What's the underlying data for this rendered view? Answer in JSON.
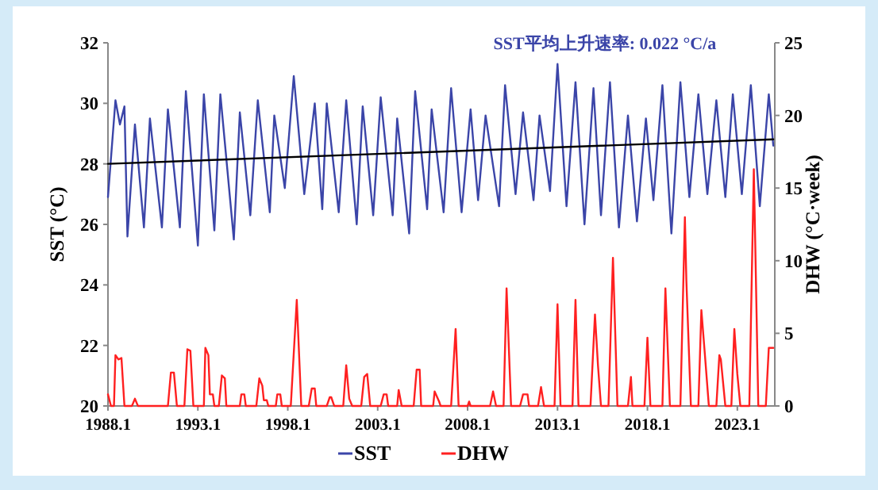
{
  "chart_data": {
    "type": "line",
    "ylabel": "SST (°C)",
    "y2label": "DHW (°C·week)",
    "annotations": [
      "SST平均上升速率: 0.022 °C/a"
    ],
    "legend": "bottom",
    "grid": false,
    "marker": "none",
    "line_style": "solid",
    "xlim": [
      "1988-01",
      "2025-02"
    ],
    "xticks": [
      {
        "value": "1988-01",
        "label": "1988.1"
      },
      {
        "value": "1993-01",
        "label": "1993.1"
      },
      {
        "value": "1998-01",
        "label": "1998.1"
      },
      {
        "value": "2003-01",
        "label": "2003.1"
      },
      {
        "value": "2008-01",
        "label": "2008.1"
      },
      {
        "value": "2013-01",
        "label": "2013.1"
      },
      {
        "value": "2018-01",
        "label": "2018.1"
      },
      {
        "value": "2023-01",
        "label": "2023.1"
      }
    ],
    "ylim": [
      20,
      32
    ],
    "yticks": [
      20,
      22,
      24,
      26,
      28,
      30,
      32
    ],
    "y2lim": [
      0,
      25
    ],
    "y2ticks": [
      0,
      5,
      10,
      15,
      20,
      25
    ],
    "series": [
      {
        "name": "SST",
        "color": "#3b45a8",
        "x": [
          "1988-01",
          "1988-06",
          "1988-09",
          "1988-12",
          "1989-02",
          "1989-07",
          "1990-01",
          "1990-05",
          "1991-01",
          "1991-05",
          "1992-01",
          "1992-05",
          "1993-01",
          "1993-05",
          "1993-12",
          "1994-04",
          "1995-01",
          "1995-05",
          "1995-12",
          "1996-05",
          "1997-01",
          "1997-04",
          "1997-11",
          "1998-05",
          "1998-12",
          "1999-07",
          "1999-12",
          "2000-03",
          "2000-11",
          "2001-04",
          "2001-11",
          "2002-03",
          "2002-10",
          "2003-03",
          "2003-11",
          "2004-02",
          "2004-10",
          "2005-02",
          "2005-10",
          "2006-01",
          "2006-09",
          "2007-02",
          "2007-09",
          "2008-03",
          "2008-08",
          "2009-01",
          "2009-10",
          "2010-02",
          "2010-09",
          "2011-02",
          "2011-09",
          "2012-01",
          "2012-08",
          "2013-01",
          "2013-07",
          "2014-01",
          "2014-07",
          "2015-01",
          "2015-06",
          "2015-12",
          "2016-06",
          "2016-12",
          "2017-06",
          "2017-12",
          "2018-05",
          "2018-11",
          "2019-05",
          "2019-11",
          "2020-05",
          "2020-11",
          "2021-05",
          "2021-11",
          "2022-05",
          "2022-10",
          "2023-04",
          "2023-10",
          "2024-04",
          "2024-10",
          "2025-01"
        ],
        "values": [
          26.9,
          30.1,
          29.3,
          29.9,
          25.6,
          29.3,
          25.9,
          29.5,
          25.9,
          29.8,
          25.9,
          30.4,
          25.3,
          30.3,
          25.8,
          30.3,
          25.5,
          29.7,
          26.3,
          30.1,
          26.4,
          29.6,
          27.2,
          30.9,
          27.0,
          30.0,
          26.5,
          30.0,
          26.4,
          30.1,
          26.0,
          29.9,
          26.3,
          30.2,
          26.3,
          29.5,
          25.7,
          30.4,
          26.5,
          29.8,
          26.4,
          30.5,
          26.4,
          29.8,
          26.8,
          29.6,
          26.6,
          30.6,
          27.0,
          29.7,
          26.8,
          29.6,
          27.1,
          31.3,
          26.6,
          30.7,
          26.0,
          30.5,
          26.3,
          30.7,
          25.9,
          29.6,
          26.1,
          29.5,
          26.8,
          30.6,
          25.7,
          30.7,
          26.9,
          30.3,
          27.0,
          30.1,
          26.9,
          30.3,
          27.0,
          30.6,
          26.6,
          30.3,
          28.6
        ]
      },
      {
        "color": "#000000",
        "x": [
          "1988-01",
          "2025-01"
        ],
        "values": [
          28.0,
          28.81
        ]
      },
      {
        "name": "DHW",
        "color": "#ff2020",
        "axis": "y2",
        "x": [
          "1988-01",
          "1988-03",
          "1988-05",
          "1988-06",
          "1988-08",
          "1988-10",
          "1988-12",
          "1989-05",
          "1989-07",
          "1989-09",
          "1991-05",
          "1991-07",
          "1991-09",
          "1991-11",
          "1992-04",
          "1992-06",
          "1992-08",
          "1992-10",
          "1993-05",
          "1993-06",
          "1993-08",
          "1993-09",
          "1993-11",
          "1993-12",
          "1994-03",
          "1994-05",
          "1994-07",
          "1994-08",
          "1995-05",
          "1995-06",
          "1995-08",
          "1995-09",
          "1996-04",
          "1996-06",
          "1996-08",
          "1996-09",
          "1996-11",
          "1996-12",
          "1997-05",
          "1997-06",
          "1997-08",
          "1997-09",
          "1998-03",
          "1998-07",
          "1998-10",
          "1999-03",
          "1999-05",
          "1999-07",
          "1999-08",
          "2000-03",
          "2000-05",
          "2000-06",
          "2000-08",
          "2001-02",
          "2001-04",
          "2001-06",
          "2001-08",
          "2002-02",
          "2002-04",
          "2002-06",
          "2002-08",
          "2003-03",
          "2003-05",
          "2003-07",
          "2003-08",
          "2004-02",
          "2004-03",
          "2004-05",
          "2005-01",
          "2005-03",
          "2005-05",
          "2005-06",
          "2006-02",
          "2006-03",
          "2006-06",
          "2006-07",
          "2007-02",
          "2007-05",
          "2007-07",
          "2008-01",
          "2008-02",
          "2008-03",
          "2009-04",
          "2009-06",
          "2009-08",
          "2010-01",
          "2010-03",
          "2010-06",
          "2010-12",
          "2011-02",
          "2011-05",
          "2011-06",
          "2011-12",
          "2012-02",
          "2012-04",
          "2012-11",
          "2013-01",
          "2013-03",
          "2013-11",
          "2014-01",
          "2014-03",
          "2014-11",
          "2015-02",
          "2015-04",
          "2015-06",
          "2015-11",
          "2016-02",
          "2016-05",
          "2016-12",
          "2017-02",
          "2017-03",
          "2017-11",
          "2018-01",
          "2018-03",
          "2018-11",
          "2019-01",
          "2019-04",
          "2019-11",
          "2020-02",
          "2020-03",
          "2020-06",
          "2020-11",
          "2021-01",
          "2021-03",
          "2021-06",
          "2021-11",
          "2022-01",
          "2022-02",
          "2022-05",
          "2022-09",
          "2022-11",
          "2023-01",
          "2023-03",
          "2023-09",
          "2023-12",
          "2024-03",
          "2024-08",
          "2024-10",
          "2025-01"
        ],
        "values": [
          0.8,
          0,
          0,
          3.5,
          3.2,
          3.3,
          0,
          0,
          0.5,
          0,
          0,
          2.3,
          2.3,
          0,
          0,
          3.9,
          3.8,
          0,
          0,
          4.0,
          3.5,
          0.8,
          0.8,
          0,
          0,
          2.1,
          1.9,
          0,
          0,
          0.8,
          0.8,
          0,
          0,
          1.9,
          1.4,
          0.4,
          0.4,
          0,
          0,
          0.8,
          0.8,
          0,
          0,
          7.3,
          0,
          0,
          1.2,
          1.2,
          0,
          0,
          0.6,
          0.6,
          0,
          0,
          2.8,
          0.5,
          0,
          0,
          2.0,
          2.2,
          0,
          0,
          0.8,
          0.8,
          0,
          0,
          1.1,
          0,
          0,
          2.5,
          2.5,
          0,
          0,
          1.0,
          0.3,
          0,
          0,
          5.3,
          0,
          0,
          0.3,
          0,
          0,
          1.0,
          0,
          0,
          8.1,
          0,
          0,
          0.8,
          0.8,
          0,
          0,
          1.3,
          0,
          0,
          7.0,
          0,
          0,
          7.3,
          0,
          0,
          6.3,
          2.8,
          0,
          0,
          10.2,
          0,
          0,
          2.0,
          0,
          0,
          4.7,
          0,
          0,
          8.1,
          0,
          0,
          13.0,
          8.6,
          0,
          0,
          6.6,
          4.0,
          0,
          0,
          3.5,
          3.2,
          0,
          0,
          5.3,
          2.2,
          0,
          0,
          16.3,
          0,
          0,
          4.0,
          4.0
        ]
      }
    ]
  }
}
